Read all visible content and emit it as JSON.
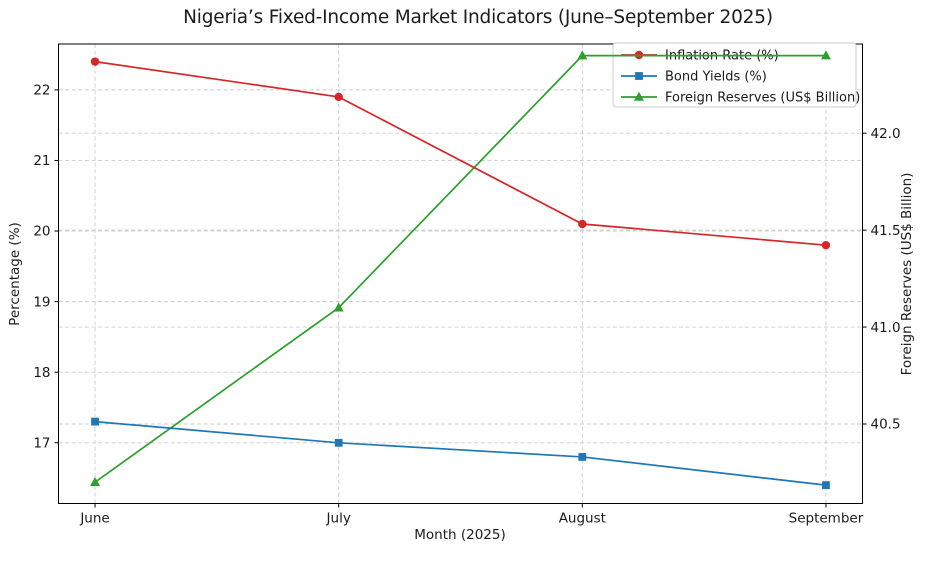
{
  "chart_data": {
    "type": "line",
    "title": "Nigeria’s Fixed-Income Market Indicators (June–September 2025)",
    "x_axis": {
      "label": "Month (2025)",
      "categories": [
        "June",
        "July",
        "August",
        "September"
      ]
    },
    "left_axis": {
      "label": "Percentage (%)",
      "ticks": [
        17,
        18,
        19,
        20,
        21,
        22
      ],
      "range": [
        16.14,
        22.65
      ]
    },
    "right_axis": {
      "label": "Foreign Reserves (US$ Billion)",
      "ticks": [
        "40.5",
        "41.0",
        "41.5",
        "42.0"
      ],
      "tick_values": [
        40.5,
        41.0,
        41.5,
        42.0
      ],
      "range": [
        40.09,
        42.46
      ]
    },
    "series": [
      {
        "name": "Inflation Rate (%)",
        "color": "#d62728",
        "marker": "circle",
        "axis": "left",
        "values": [
          22.4,
          21.9,
          20.1,
          19.8
        ]
      },
      {
        "name": "Bond Yields (%)",
        "color": "#1f77b4",
        "marker": "square",
        "axis": "left",
        "values": [
          17.3,
          17.0,
          16.8,
          16.4
        ]
      },
      {
        "name": "Foreign Reserves (US$ Billion)",
        "color": "#2ca02c",
        "marker": "triangle",
        "axis": "right",
        "values": [
          40.2,
          41.1,
          42.4,
          42.4
        ]
      }
    ],
    "legend": {
      "location": "upper right",
      "entries": [
        "Inflation Rate (%)",
        "Bond Yields (%)",
        "Foreign Reserves (US$ Billion)"
      ]
    },
    "grid": {
      "style": "dashed",
      "color": "#cccccc"
    },
    "colors": {
      "spine": "#000000",
      "text": "#1a1a1a",
      "legend_border": "#cccccc",
      "background": "#ffffff"
    }
  }
}
